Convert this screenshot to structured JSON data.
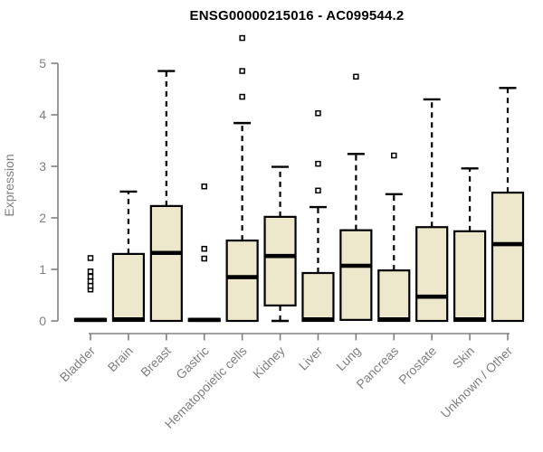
{
  "title": "ENSG00000215016 - AC099544.2",
  "chart_data": {
    "type": "boxplot",
    "title": "ENSG00000215016 - AC099544.2",
    "xlabel": "",
    "ylabel": "Expression",
    "ylim": [
      0,
      5.6
    ],
    "yticks": [
      0,
      1,
      2,
      3,
      4,
      5
    ],
    "grid": false,
    "legend": "none",
    "categories": [
      "Bladder",
      "Brain",
      "Breast",
      "Gastric",
      "Hematopoietic cells",
      "Kidney",
      "Liver",
      "Lung",
      "Pancreas",
      "Prostate",
      "Skin",
      "Unknown / Other"
    ],
    "boxes": [
      {
        "category": "Bladder",
        "low": 0,
        "q1": 0,
        "median": 0.02,
        "q3": 0.04,
        "high": 0.04,
        "outliers": [
          0.61,
          0.68,
          0.77,
          0.86,
          0.96,
          1.22
        ]
      },
      {
        "category": "Brain",
        "low": 0,
        "q1": 0,
        "median": 0.03,
        "q3": 1.3,
        "high": 2.51,
        "outliers": []
      },
      {
        "category": "Breast",
        "low": 0,
        "q1": 0,
        "median": 1.32,
        "q3": 2.23,
        "high": 4.85,
        "outliers": []
      },
      {
        "category": "Gastric",
        "low": 0,
        "q1": 0,
        "median": 0.02,
        "q3": 0.04,
        "high": 0.04,
        "outliers": [
          1.21,
          1.4,
          2.61
        ]
      },
      {
        "category": "Hematopoietic cells",
        "low": 0,
        "q1": 0,
        "median": 0.85,
        "q3": 1.56,
        "high": 3.84,
        "outliers": [
          4.35,
          4.85,
          5.49
        ]
      },
      {
        "category": "Kidney",
        "low": 0,
        "q1": 0.3,
        "median": 1.26,
        "q3": 2.02,
        "high": 2.99,
        "outliers": []
      },
      {
        "category": "Liver",
        "low": 0,
        "q1": 0,
        "median": 0.03,
        "q3": 0.93,
        "high": 2.21,
        "outliers": [
          2.53,
          3.05,
          4.03
        ]
      },
      {
        "category": "Lung",
        "low": 0.02,
        "q1": 0.02,
        "median": 1.07,
        "q3": 1.76,
        "high": 3.24,
        "outliers": [
          4.74
        ]
      },
      {
        "category": "Pancreas",
        "low": 0,
        "q1": 0,
        "median": 0.03,
        "q3": 0.98,
        "high": 2.46,
        "outliers": [
          3.21
        ]
      },
      {
        "category": "Prostate",
        "low": 0,
        "q1": 0,
        "median": 0.47,
        "q3": 1.82,
        "high": 4.3,
        "outliers": []
      },
      {
        "category": "Skin",
        "low": 0,
        "q1": 0,
        "median": 0.03,
        "q3": 1.74,
        "high": 2.96,
        "outliers": []
      },
      {
        "category": "Unknown / Other",
        "low": 0,
        "q1": 0,
        "median": 1.49,
        "q3": 2.49,
        "high": 4.52,
        "outliers": []
      }
    ],
    "colors": {
      "box_fill": "#EDE7CB",
      "box_border": "#000000",
      "median": "#000000",
      "whisker": "#000000",
      "outlier": "#000000",
      "axis": "#808080",
      "axis_text": "#808080",
      "title": "#000000",
      "background": "#FFFFFF"
    }
  }
}
